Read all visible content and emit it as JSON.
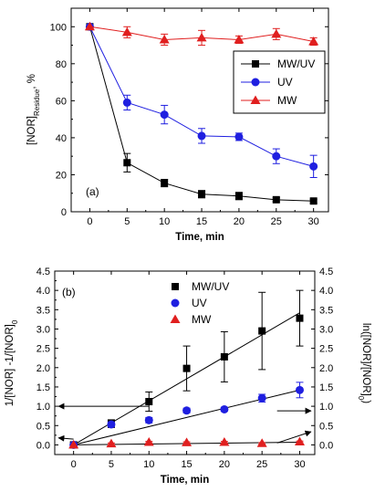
{
  "chart_data": [
    {
      "id": "a",
      "type": "line",
      "panel_label": "(a)",
      "xlabel": "Time, min",
      "ylabel": "[NOR]",
      "ylabel_sub": "Residue",
      "ylabel_suffix": ", %",
      "xlim": [
        -2.5,
        32
      ],
      "ylim": [
        0,
        110
      ],
      "xticks": [
        0,
        5,
        10,
        15,
        20,
        25,
        30
      ],
      "yticks": [
        0,
        20,
        40,
        60,
        80,
        100
      ],
      "legend_position": "right",
      "series": [
        {
          "name": "MW/UV",
          "marker": "square",
          "color": "#000000",
          "x": [
            0,
            5,
            10,
            15,
            20,
            25,
            30
          ],
          "y": [
            100,
            26.5,
            15.5,
            9.5,
            8.5,
            6.5,
            5.8
          ],
          "err": [
            0,
            5,
            2,
            2,
            2,
            1,
            1
          ]
        },
        {
          "name": "UV",
          "marker": "circle",
          "color": "#1f1fe0",
          "x": [
            0,
            5,
            10,
            15,
            20,
            25,
            30
          ],
          "y": [
            100,
            59,
            52.5,
            41,
            40.5,
            30,
            24.5
          ],
          "err": [
            0,
            4,
            5,
            4,
            2,
            4,
            6
          ]
        },
        {
          "name": "MW",
          "marker": "triangle",
          "color": "#e01f1f",
          "x": [
            0,
            5,
            10,
            15,
            20,
            25,
            30
          ],
          "y": [
            100,
            97,
            93,
            94,
            93,
            96,
            92
          ],
          "err": [
            0,
            3,
            3,
            4,
            2,
            3,
            2
          ]
        }
      ]
    },
    {
      "id": "b",
      "type": "scatter",
      "panel_label": "(b)",
      "xlabel": "Time, min",
      "ylabel_left": "1/[NOR] -1/[NOR]",
      "ylabel_left_sub": "0",
      "ylabel_right": "ln([NOR]/[NOR]",
      "ylabel_right_sub": "0",
      "ylabel_right_suffix": ")",
      "xlim": [
        -2.5,
        32
      ],
      "ylim": [
        -0.25,
        4.5
      ],
      "xticks": [
        0,
        5,
        10,
        15,
        20,
        25,
        30
      ],
      "yticks": [
        "0.0",
        "0.5",
        "1.0",
        "1.5",
        "2.0",
        "2.5",
        "3.0",
        "3.5",
        "4.0",
        "4.5"
      ],
      "legend_position": "top-center",
      "series": [
        {
          "name": "MW/UV",
          "marker": "square",
          "color": "#000000",
          "x": [
            0,
            5,
            10,
            15,
            20,
            25,
            30
          ],
          "y": [
            0,
            0.55,
            1.12,
            1.98,
            2.28,
            2.95,
            3.28
          ],
          "err": [
            0,
            0.1,
            0.25,
            0.58,
            0.65,
            1.0,
            0.72
          ]
        },
        {
          "name": "UV",
          "marker": "circle",
          "color": "#1f1fe0",
          "x": [
            0,
            5,
            10,
            15,
            20,
            25,
            30
          ],
          "y": [
            0,
            0.53,
            0.64,
            0.89,
            0.92,
            1.21,
            1.42
          ],
          "err": [
            0,
            0.06,
            0.07,
            0.06,
            0.05,
            0.1,
            0.2
          ]
        },
        {
          "name": "MW",
          "marker": "triangle",
          "color": "#e01f1f",
          "x": [
            0,
            5,
            10,
            15,
            20,
            25,
            30
          ],
          "y": [
            0,
            0.03,
            0.07,
            0.06,
            0.07,
            0.04,
            0.08
          ],
          "err": [
            0,
            0.02,
            0.02,
            0.02,
            0.02,
            0.02,
            0.02
          ]
        }
      ],
      "fit_lines": [
        {
          "series": "MW/UV",
          "x": [
            0,
            30
          ],
          "y": [
            0,
            3.42
          ]
        },
        {
          "series": "UV",
          "x": [
            0,
            30
          ],
          "y": [
            0,
            1.42
          ]
        },
        {
          "series": "MW",
          "x": [
            0,
            30
          ],
          "y": [
            0,
            0.07
          ]
        }
      ],
      "arrows": [
        {
          "from": [
            10,
            1.0
          ],
          "to": [
            -2,
            1.0
          ],
          "points_to": "left axis"
        },
        {
          "from": [
            0,
            0.15
          ],
          "to": [
            -2,
            0.18
          ],
          "points_to": "left axis"
        },
        {
          "from": [
            27,
            0.88
          ],
          "to": [
            31.5,
            0.88
          ],
          "points_to": "right axis"
        },
        {
          "from": [
            27,
            0.05
          ],
          "to": [
            31.5,
            0.34
          ],
          "points_to": "right axis"
        }
      ]
    }
  ]
}
